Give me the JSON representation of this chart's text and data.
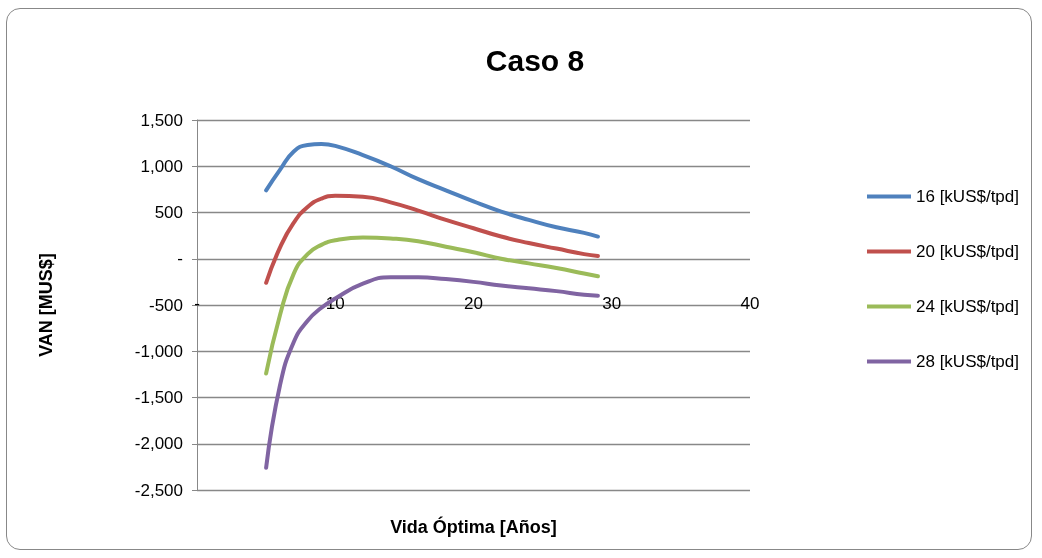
{
  "chart_data": {
    "type": "line",
    "title": "Caso 8",
    "xlabel": "Vida Óptima [Años]",
    "ylabel": "VAN [MUS$]",
    "x": [
      5,
      6,
      7,
      8,
      9,
      10,
      12,
      14,
      16,
      18,
      20,
      22,
      24,
      26,
      28,
      29
    ],
    "series": [
      {
        "name": "16 [kUS$/tpd]",
        "color": "#4f81bd",
        "values": [
          740,
          960,
          1160,
          1230,
          1240,
          1220,
          1120,
          1000,
          860,
          740,
          620,
          510,
          420,
          340,
          280,
          240
        ]
      },
      {
        "name": "20 [kUS$/tpd]",
        "color": "#c0504d",
        "values": [
          -260,
          120,
          390,
          560,
          650,
          680,
          670,
          610,
          520,
          420,
          330,
          240,
          170,
          110,
          50,
          30
        ]
      },
      {
        "name": "24 [kUS$/tpd]",
        "color": "#9bbb59",
        "values": [
          -1240,
          -610,
          -160,
          50,
          150,
          200,
          230,
          220,
          190,
          130,
          70,
          0,
          -50,
          -100,
          -160,
          -190
        ]
      },
      {
        "name": "28 [kUS$/tpd]",
        "color": "#8064a2",
        "values": [
          -2260,
          -1370,
          -900,
          -670,
          -530,
          -430,
          -270,
          -200,
          -200,
          -220,
          -250,
          -290,
          -320,
          -350,
          -390,
          -400
        ]
      }
    ],
    "xlim": [
      0,
      40
    ],
    "xticks": [
      {
        "value": 0,
        "label": "-"
      },
      10,
      20,
      30,
      40
    ],
    "ylim": [
      -2500,
      1500
    ],
    "yticks": [
      {
        "value": -2500,
        "label": "-2,500"
      },
      {
        "value": -2000,
        "label": "-2,000"
      },
      {
        "value": -1500,
        "label": "-1,500"
      },
      {
        "value": -1000,
        "label": "-1,000"
      },
      {
        "value": -500,
        "label": "-500"
      },
      {
        "value": 0,
        "label": "-"
      },
      {
        "value": 500,
        "label": "500"
      },
      {
        "value": 1000,
        "label": "1,000"
      },
      {
        "value": 1500,
        "label": "1,500"
      }
    ],
    "grid": "y",
    "legend": "right",
    "marker": "none",
    "line_style": "solid"
  }
}
